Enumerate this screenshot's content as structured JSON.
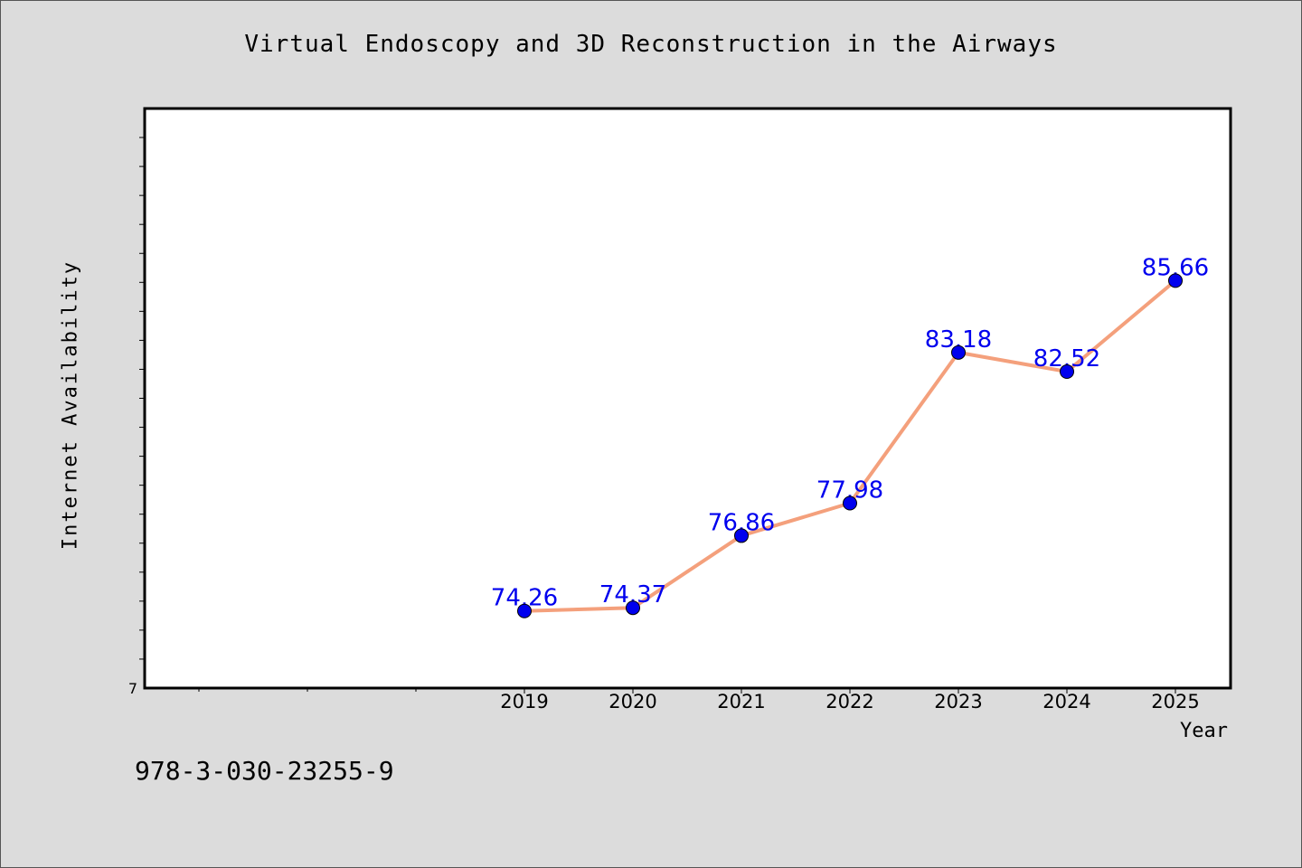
{
  "chart_data": {
    "type": "line",
    "title": "Virtual Endoscopy and 3D Reconstruction in the Airways",
    "xlabel": "Year",
    "ylabel": "Internet Availability",
    "categories": [
      "2019",
      "2020",
      "2021",
      "2022",
      "2023",
      "2024",
      "2025"
    ],
    "series": [
      {
        "values": [
          74.26,
          74.37,
          76.86,
          77.98,
          83.18,
          82.52,
          85.66
        ]
      }
    ],
    "data_labels": [
      "74.26",
      "74.37",
      "76.86",
      "77.98",
      "83.18",
      "82.52",
      "85.66"
    ],
    "y_tick_labels": [
      "7"
    ],
    "ylim": [
      71.6,
      91.6
    ],
    "grid": false,
    "legend": "none",
    "colors": {
      "line": "#f4a07c",
      "marker": "#0000ee",
      "data_label": "#0000ee",
      "background": "#dcdcdc",
      "plot_background": "#ffffff"
    }
  },
  "footer": {
    "isbn": "978-3-030-23255-9"
  }
}
